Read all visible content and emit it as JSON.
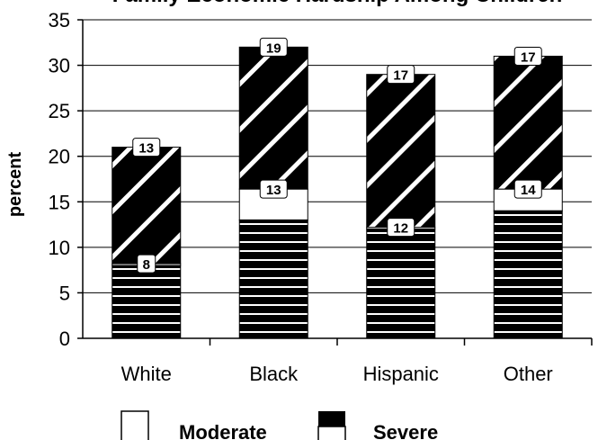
{
  "chart_data": {
    "type": "bar",
    "stacked": true,
    "title": "Family Economic Hardship Among Children",
    "xlabel": "",
    "ylabel": "percent",
    "ylim": [
      0,
      35
    ],
    "yticks": [
      "0",
      "5",
      "10",
      "15",
      "20",
      "25",
      "30",
      "35"
    ],
    "grid": true,
    "legend_position": "bottom",
    "categories": [
      "White",
      "Black",
      "Hispanic",
      "Other"
    ],
    "series": [
      {
        "name": "Severe",
        "pattern": "horizontal-stripes",
        "values": [
          8,
          13,
          12,
          14
        ]
      },
      {
        "name": "Moderate",
        "pattern": "solid-white",
        "values": [
          0.2,
          3.4,
          0.2,
          2.4
        ]
      },
      {
        "name": "",
        "pattern": "diagonal-stripes",
        "values": [
          12.8,
          15.6,
          16.8,
          14.6
        ]
      }
    ],
    "data_labels": [
      {
        "category": "White",
        "lower": "8",
        "upper": "13"
      },
      {
        "category": "Black",
        "lower": "13",
        "upper": "19"
      },
      {
        "category": "Hispanic",
        "lower": "12",
        "upper": "17"
      },
      {
        "category": "Other",
        "lower": "14",
        "upper": "17"
      }
    ],
    "legend": [
      {
        "label": "Moderate",
        "swatch": "white"
      },
      {
        "label": "Severe",
        "swatch": "black-white"
      }
    ],
    "colors": {
      "fill": "#000000",
      "stripe": "#ffffff",
      "background": "#ffffff",
      "grid": "#000000"
    }
  }
}
